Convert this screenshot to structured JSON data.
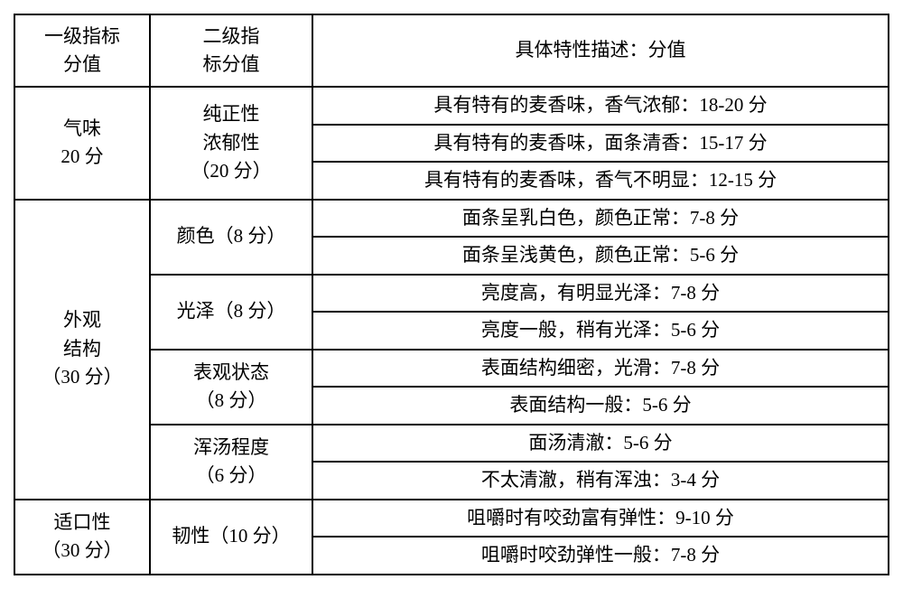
{
  "header": {
    "c1_l1": "一级指标",
    "c1_l2": "分值",
    "c2_l1": "二级指",
    "c2_l2": "标分值",
    "c3": "具体特性描述：分值"
  },
  "r1": {
    "l1a": "气味",
    "l1b": "20 分",
    "s1a": "纯正性",
    "s1b": "浓郁性",
    "s1c": "（20 分）",
    "d1": "具有特有的麦香味，香气浓郁：18-20 分",
    "d2": "具有特有的麦香味，面条清香：15-17 分",
    "d3": "具有特有的麦香味，香气不明显：12-15 分"
  },
  "r2": {
    "l1a": "外观",
    "l1b": "结构",
    "l1c": "（30 分）",
    "s1": "颜色（8 分）",
    "d1": "面条呈乳白色，颜色正常：7-8 分",
    "d2": "面条呈浅黄色，颜色正常：5-6 分",
    "s2": "光泽（8 分）",
    "d3": "亮度高，有明显光泽：7-8 分",
    "d4": "亮度一般，稍有光泽：5-6 分",
    "s3a": "表观状态",
    "s3b": "（8 分）",
    "d5": "表面结构细密，光滑：7-8 分",
    "d6": "表面结构一般：5-6 分",
    "s4a": "浑汤程度",
    "s4b": "（6 分）",
    "d7": "面汤清澈：5-6 分",
    "d8": "不太清澈，稍有浑浊：3-4 分"
  },
  "r3": {
    "l1a": "适口性",
    "l1b": "（30 分）",
    "s1": "韧性（10 分）",
    "d1": "咀嚼时有咬劲富有弹性：9-10 分",
    "d2": "咀嚼时咬劲弹性一般：7-8 分"
  }
}
